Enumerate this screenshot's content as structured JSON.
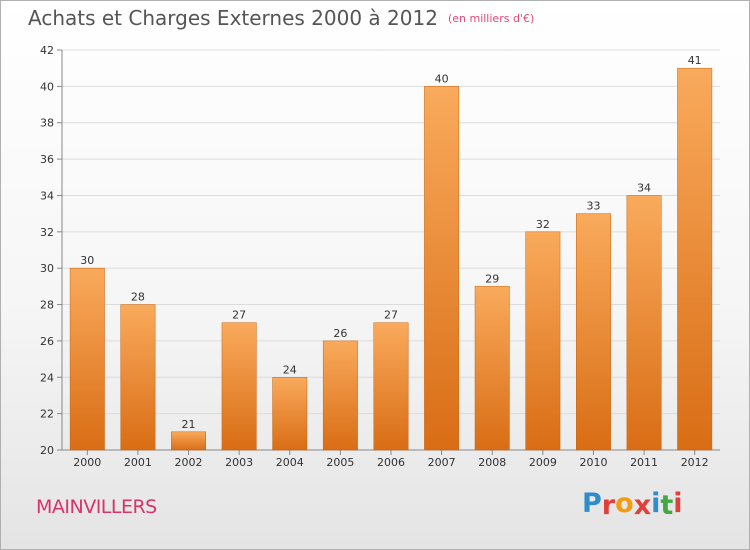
{
  "header": {
    "title": "Achats et Charges Externes 2000 à 2012",
    "unit": "(en milliers d'€)"
  },
  "footer": {
    "city": "MAINVILLERS",
    "logo_letters": [
      "P",
      "r",
      "o",
      "x",
      "i",
      "t",
      "i"
    ],
    "logo_colors": [
      "#2f8ec9",
      "#e0403c",
      "#f39c12",
      "#e0403c",
      "#2f8ec9",
      "#43a843",
      "#e0403c"
    ]
  },
  "chart_data": {
    "type": "bar",
    "categories": [
      "2000",
      "2001",
      "2002",
      "2003",
      "2004",
      "2005",
      "2006",
      "2007",
      "2008",
      "2009",
      "2010",
      "2011",
      "2012"
    ],
    "values": [
      30,
      28,
      21,
      27,
      24,
      26,
      27,
      40,
      29,
      32,
      33,
      34,
      41
    ],
    "ylim": [
      20,
      42
    ],
    "yticks": [
      20,
      22,
      24,
      26,
      28,
      30,
      32,
      34,
      36,
      38,
      40,
      42
    ],
    "grid": true,
    "bar_color": "#f08a2a"
  }
}
